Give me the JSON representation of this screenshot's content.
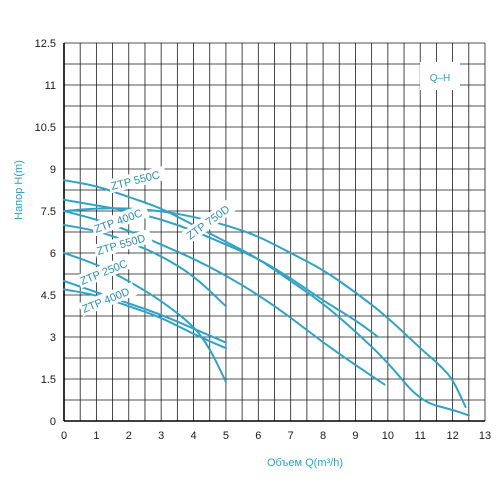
{
  "chart_data": {
    "type": "line",
    "title": "",
    "xlabel": "Объем Q(m³/h)",
    "ylabel": "Напор H(m)",
    "legend_text": "Q–H",
    "legend_placement": "top-right",
    "grid": true,
    "xlim": [
      0,
      13
    ],
    "ylim": [
      0,
      12.5
    ],
    "x_ticks": [
      "0",
      "1",
      "2",
      "3",
      "4",
      "5",
      "6",
      "7",
      "8",
      "9",
      "10",
      "11",
      "12",
      "13"
    ],
    "y_ticks": [
      "0",
      "1.5",
      "3",
      "4.5",
      "6",
      "7.5",
      "9",
      "10.5",
      "11",
      "12.5"
    ],
    "colors": {
      "series": "#2ea3c8",
      "axis_title": "#29a3c4",
      "label": "#2b8fb0",
      "grid": "#1a1a1a"
    },
    "series": [
      {
        "name": "ZTP 550C",
        "points": [
          [
            0,
            8.6
          ],
          [
            1,
            8.4
          ],
          [
            2,
            8.0
          ],
          [
            3,
            7.6
          ],
          [
            4,
            7.0
          ],
          [
            5,
            6.4
          ],
          [
            6,
            5.8
          ],
          [
            7,
            5.0
          ],
          [
            8,
            4.2
          ],
          [
            9,
            3.2
          ],
          [
            10,
            2.1
          ],
          [
            11,
            0.7
          ],
          [
            12,
            0.4
          ],
          [
            12.5,
            0.2
          ]
        ]
      },
      {
        "name": "ZTP 750D",
        "points": [
          [
            0,
            7.5
          ],
          [
            1,
            7.6
          ],
          [
            2,
            7.6
          ],
          [
            3,
            7.5
          ],
          [
            4,
            7.3
          ],
          [
            5,
            7.0
          ],
          [
            6,
            6.6
          ],
          [
            7,
            6.0
          ],
          [
            8,
            5.4
          ],
          [
            9,
            4.6
          ],
          [
            10,
            3.7
          ],
          [
            11,
            2.6
          ],
          [
            11.6,
            2.0
          ],
          [
            12,
            1.5
          ],
          [
            12.4,
            0.5
          ]
        ]
      },
      {
        "name": "ZTP 550D",
        "points": [
          [
            0,
            7.9
          ],
          [
            1,
            7.7
          ],
          [
            2,
            7.5
          ],
          [
            3,
            7.2
          ],
          [
            4,
            6.8
          ],
          [
            5,
            6.3
          ],
          [
            6,
            5.8
          ],
          [
            7,
            5.1
          ],
          [
            8,
            4.3
          ],
          [
            9,
            3.6
          ],
          [
            9.7,
            3.0
          ]
        ]
      },
      {
        "name": "ZTP 400C",
        "points": [
          [
            0,
            7.5
          ],
          [
            1,
            7.2
          ],
          [
            2,
            6.8
          ],
          [
            3,
            6.3
          ],
          [
            4,
            5.8
          ],
          [
            5,
            5.2
          ],
          [
            6,
            4.5
          ],
          [
            7,
            3.7
          ],
          [
            8,
            2.8
          ],
          [
            9,
            2.0
          ],
          [
            9.9,
            1.3
          ]
        ]
      },
      {
        "name": "ZTP 250C",
        "points": [
          [
            0,
            6.0
          ],
          [
            1,
            5.6
          ],
          [
            2,
            5.0
          ],
          [
            3,
            4.3
          ],
          [
            4,
            3.4
          ],
          [
            4.5,
            2.6
          ],
          [
            5,
            1.4
          ]
        ]
      },
      {
        "name": "ZTP 400D",
        "points": [
          [
            0,
            5.0
          ],
          [
            1,
            4.6
          ],
          [
            2,
            4.2
          ],
          [
            3,
            3.8
          ],
          [
            4,
            3.3
          ],
          [
            5,
            2.8
          ]
        ]
      },
      {
        "name": "",
        "points": [
          [
            0,
            7.0
          ],
          [
            1,
            6.8
          ],
          [
            2,
            6.4
          ],
          [
            3,
            5.9
          ],
          [
            4,
            5.2
          ],
          [
            5,
            4.1
          ]
        ]
      },
      {
        "name": "",
        "points": [
          [
            0,
            4.7
          ],
          [
            1,
            4.5
          ],
          [
            2,
            4.1
          ],
          [
            3,
            3.7
          ],
          [
            4,
            3.1
          ],
          [
            5,
            2.6
          ]
        ]
      }
    ],
    "annotations": [
      {
        "text": "ZTP 550C",
        "series": 0
      },
      {
        "text": "ZTP 750D",
        "series": 1
      },
      {
        "text": "ZTP 550D",
        "series": 2
      },
      {
        "text": "ZTP 400C",
        "series": 3
      },
      {
        "text": "ZTP 250C",
        "series": 4
      },
      {
        "text": "ZTP 400D",
        "series": 5
      }
    ]
  }
}
